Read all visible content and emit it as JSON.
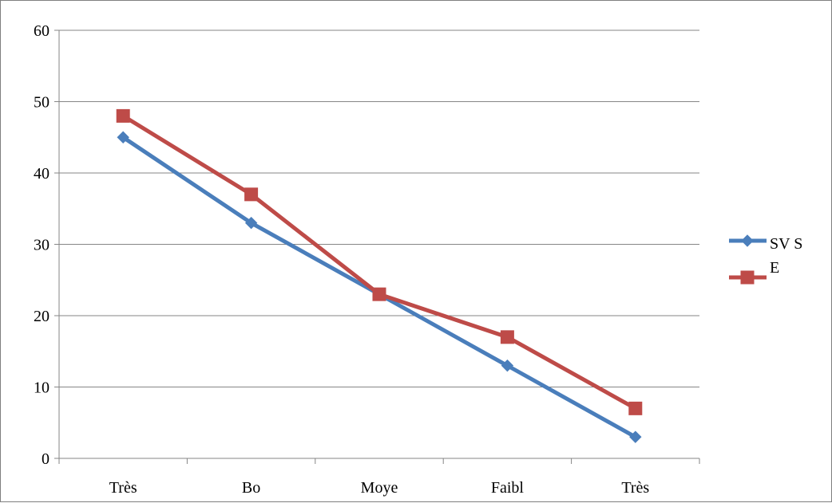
{
  "chart_data": {
    "type": "line",
    "title": "",
    "xlabel": "",
    "ylabel": "",
    "categories": [
      "Très",
      "Bo",
      "Moye",
      "Faibl",
      "Très"
    ],
    "ylim": [
      0,
      60
    ],
    "yticks": [
      0,
      10,
      20,
      30,
      40,
      50,
      60
    ],
    "grid": "horizontal",
    "legend_position": "right",
    "series": [
      {
        "name": "SV S",
        "values": [
          45,
          33,
          23,
          13,
          3
        ],
        "color": "#4a7ebb",
        "marker": "diamond"
      },
      {
        "name": "E",
        "values": [
          48,
          37,
          23,
          17,
          7
        ],
        "color": "#be4b48",
        "marker": "square"
      }
    ]
  }
}
